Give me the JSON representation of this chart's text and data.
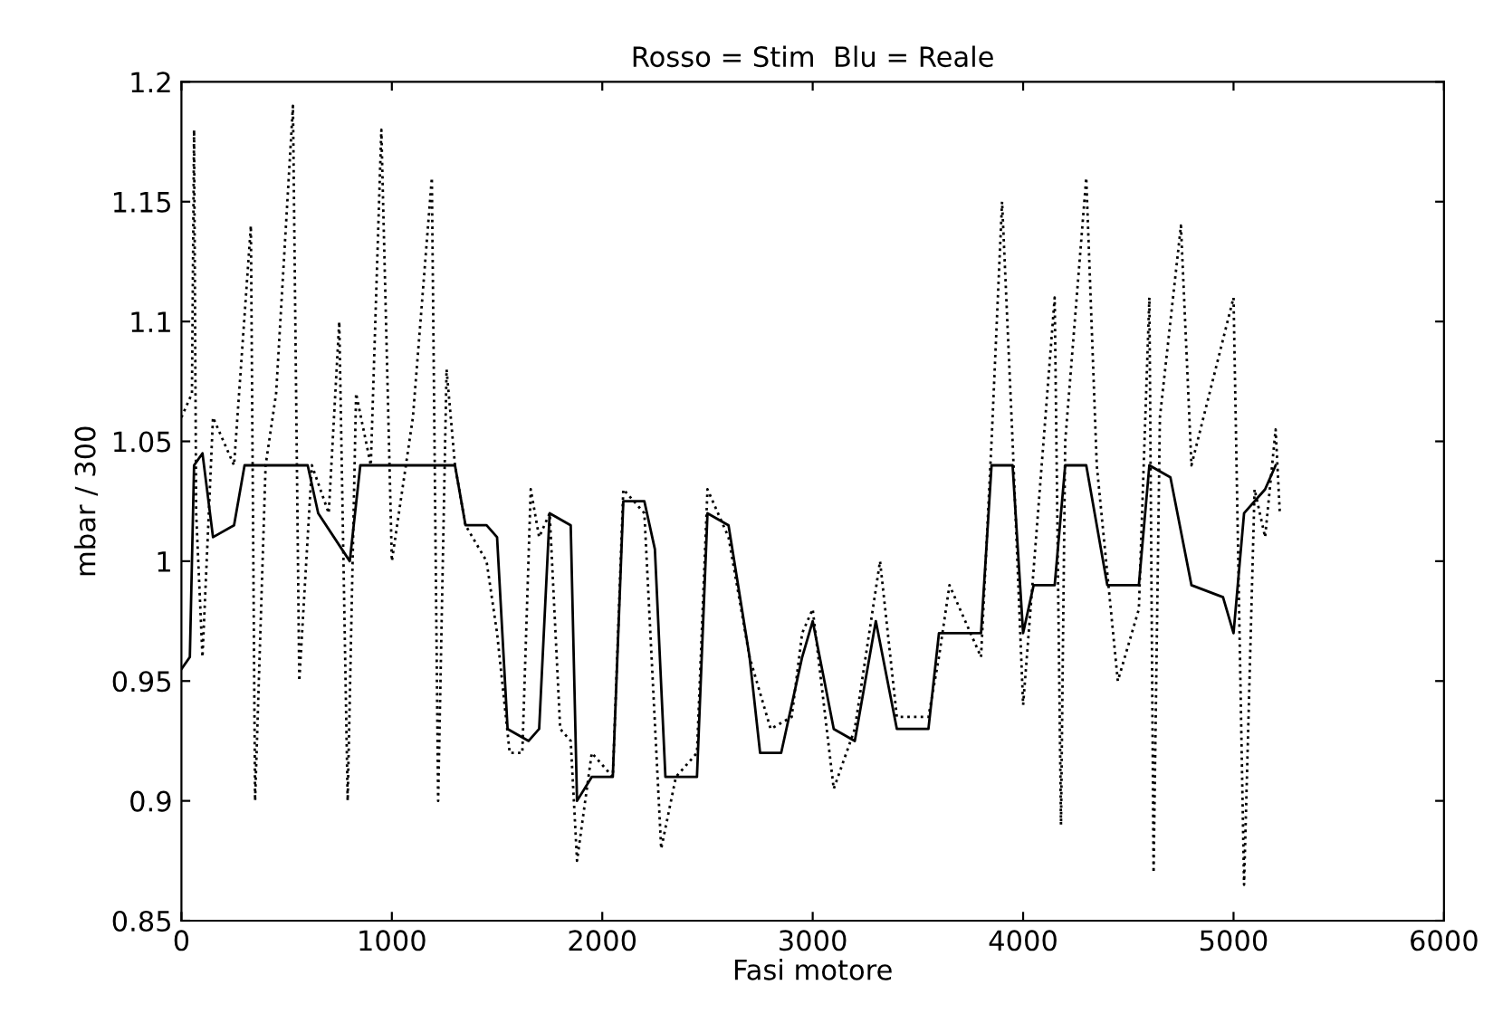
{
  "chart_data": {
    "type": "line",
    "title": "Rosso = Stim  Blu = Reale",
    "xlabel": "Fasi motore",
    "ylabel": "mbar / 300",
    "xlim": [
      0,
      6000
    ],
    "ylim": [
      0.85,
      1.2
    ],
    "xticks": [
      0,
      1000,
      2000,
      3000,
      4000,
      5000,
      6000
    ],
    "yticks": [
      0.85,
      0.9,
      0.95,
      1,
      1.05,
      1.1,
      1.15,
      1.2
    ],
    "grid": false,
    "legend": false,
    "marker": "none",
    "series": [
      {
        "color": "#000000",
        "line_style": "solid",
        "x": [
          0,
          40,
          60,
          100,
          150,
          250,
          300,
          500,
          600,
          650,
          800,
          850,
          1200,
          1300,
          1350,
          1450,
          1500,
          1550,
          1650,
          1700,
          1750,
          1850,
          1880,
          1950,
          2050,
          2100,
          2200,
          2250,
          2300,
          2450,
          2500,
          2600,
          2700,
          2750,
          2850,
          2950,
          3000,
          3100,
          3200,
          3300,
          3400,
          3550,
          3600,
          3800,
          3850,
          3950,
          4000,
          4050,
          4150,
          4200,
          4300,
          4400,
          4550,
          4600,
          4700,
          4800,
          4950,
          5000,
          5050,
          5150,
          5200
        ],
        "values": [
          0.955,
          0.96,
          1.04,
          1.045,
          1.01,
          1.015,
          1.04,
          1.04,
          1.04,
          1.02,
          1.0,
          1.04,
          1.04,
          1.04,
          1.015,
          1.015,
          1.01,
          0.93,
          0.925,
          0.93,
          1.02,
          1.015,
          0.9,
          0.91,
          0.91,
          1.025,
          1.025,
          1.005,
          0.91,
          0.91,
          1.02,
          1.015,
          0.96,
          0.92,
          0.92,
          0.96,
          0.975,
          0.93,
          0.925,
          0.975,
          0.93,
          0.93,
          0.97,
          0.97,
          1.04,
          1.04,
          0.97,
          0.99,
          0.99,
          1.04,
          1.04,
          0.99,
          0.99,
          1.04,
          1.035,
          0.99,
          0.985,
          0.97,
          1.02,
          1.03,
          1.04
        ]
      },
      {
        "color": "#000000",
        "line_style": "dotted",
        "x": [
          0,
          50,
          60,
          70,
          100,
          150,
          250,
          330,
          350,
          400,
          450,
          530,
          560,
          620,
          700,
          750,
          790,
          830,
          900,
          950,
          1000,
          1100,
          1190,
          1220,
          1260,
          1300,
          1350,
          1450,
          1500,
          1560,
          1620,
          1660,
          1700,
          1750,
          1800,
          1850,
          1880,
          1950,
          2050,
          2100,
          2200,
          2280,
          2350,
          2450,
          2500,
          2600,
          2700,
          2800,
          2900,
          2950,
          3000,
          3100,
          3200,
          3320,
          3400,
          3550,
          3600,
          3650,
          3800,
          3850,
          3900,
          3950,
          4000,
          4150,
          4180,
          4200,
          4300,
          4350,
          4450,
          4550,
          4600,
          4620,
          4650,
          4750,
          4800,
          5000,
          5050,
          5100,
          5150,
          5200,
          5220
        ],
        "values": [
          1.06,
          1.07,
          1.18,
          1.02,
          0.96,
          1.06,
          1.04,
          1.14,
          0.9,
          1.04,
          1.07,
          1.19,
          0.95,
          1.04,
          1.02,
          1.1,
          0.9,
          1.07,
          1.04,
          1.18,
          1.0,
          1.06,
          1.16,
          0.9,
          1.08,
          1.04,
          1.015,
          1.0,
          0.97,
          0.92,
          0.92,
          1.03,
          1.01,
          1.02,
          0.93,
          0.925,
          0.875,
          0.92,
          0.91,
          1.03,
          1.02,
          0.88,
          0.91,
          0.92,
          1.03,
          1.01,
          0.96,
          0.93,
          0.935,
          0.97,
          0.98,
          0.905,
          0.93,
          1.0,
          0.935,
          0.935,
          0.96,
          0.99,
          0.96,
          1.05,
          1.15,
          1.05,
          0.94,
          1.11,
          0.89,
          1.05,
          1.16,
          1.04,
          0.95,
          0.98,
          1.11,
          0.87,
          1.06,
          1.14,
          1.04,
          1.11,
          0.865,
          1.03,
          1.01,
          1.055,
          1.02
        ]
      }
    ]
  }
}
